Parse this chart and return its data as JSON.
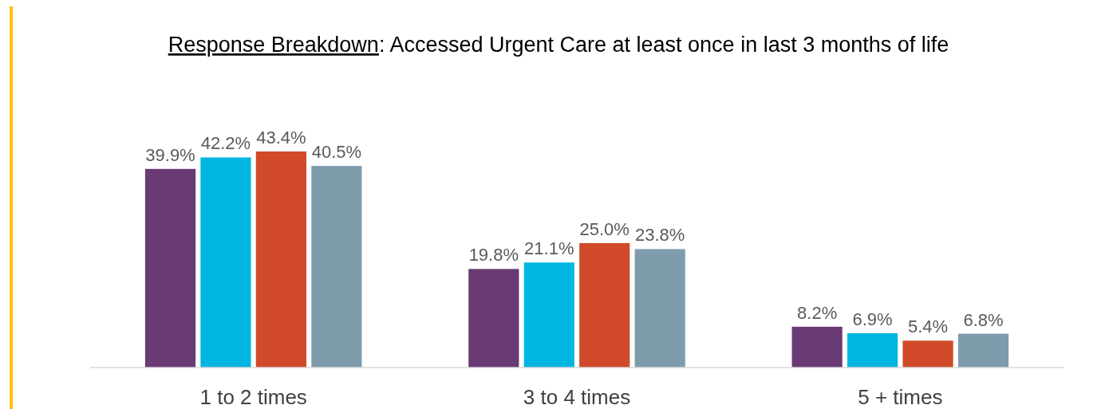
{
  "chart_data": {
    "type": "bar",
    "title": "Response Breakdown: Accessed Urgent Care at least once in last 3 months of life",
    "categories": [
      "1 to 2 times",
      "3 to 4 times",
      "5 + times"
    ],
    "series": [
      {
        "color": "#6a3a74",
        "values": [
          39.9,
          19.8,
          8.2
        ],
        "value_labels": [
          "39.9%",
          "19.8%",
          "8.2%"
        ]
      },
      {
        "color": "#00b5e2",
        "values": [
          42.2,
          21.1,
          6.9
        ],
        "value_labels": [
          "42.2%",
          "21.1%",
          "6.9%"
        ]
      },
      {
        "color": "#d04a2a",
        "values": [
          43.4,
          25.0,
          5.4
        ],
        "value_labels": [
          "43.4%",
          "25.0%",
          "5.4%"
        ]
      },
      {
        "color": "#7f9cad",
        "values": [
          40.5,
          23.8,
          6.8
        ],
        "value_labels": [
          "40.5%",
          "23.8%",
          "6.8%"
        ]
      }
    ]
  }
}
